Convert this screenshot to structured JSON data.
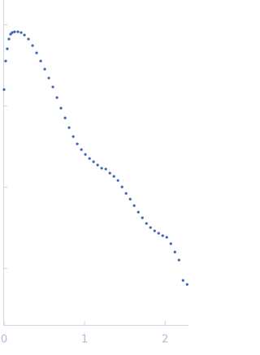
{
  "chart_data": {
    "type": "scatter",
    "x": [
      0,
      0.02,
      0.04,
      0.061,
      0.081,
      0.101,
      0.131,
      0.172,
      0.212,
      0.253,
      0.303,
      0.354,
      0.404,
      0.455,
      0.505,
      0.556,
      0.606,
      0.657,
      0.707,
      0.758,
      0.808,
      0.859,
      0.909,
      0.96,
      1.01,
      1.061,
      1.111,
      1.162,
      1.212,
      1.263,
      1.313,
      1.364,
      1.414,
      1.465,
      1.515,
      1.566,
      1.616,
      1.667,
      1.717,
      1.768,
      1.818,
      1.869,
      1.919,
      1.97,
      2.02,
      2.071,
      2.121,
      2.172,
      2.222,
      2.273
    ],
    "values": [
      0.158,
      0.355,
      0.501,
      0.661,
      0.759,
      0.794,
      0.813,
      0.813,
      0.794,
      0.741,
      0.661,
      0.55,
      0.447,
      0.355,
      0.282,
      0.219,
      0.17,
      0.126,
      0.0933,
      0.0708,
      0.0537,
      0.0417,
      0.0339,
      0.0288,
      0.0251,
      0.0224,
      0.0204,
      0.0186,
      0.017,
      0.0166,
      0.0148,
      0.0135,
      0.012,
      0.01,
      0.00832,
      0.00708,
      0.00589,
      0.0049,
      0.00417,
      0.00355,
      0.00316,
      0.00288,
      0.00269,
      0.00251,
      0.0024,
      0.002,
      0.00158,
      0.00126,
      0.000708,
      0.000631
    ],
    "color": "#3b66b5",
    "xlim": [
      -0.01,
      2.29
    ],
    "xticks": [
      0,
      1,
      2
    ],
    "ylim": [
      0.0002,
      2
    ],
    "yticks": [
      0.001,
      0.01,
      0.1,
      1
    ],
    "ylog": true
  }
}
